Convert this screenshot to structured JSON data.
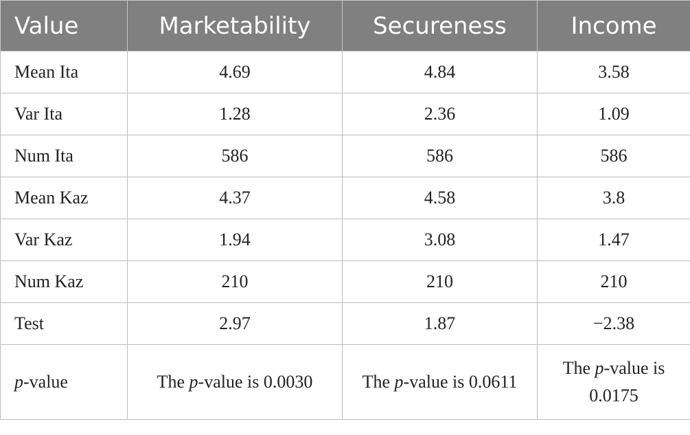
{
  "table": {
    "header": [
      "Value",
      "Marketability",
      "Secureness",
      "Income"
    ],
    "rows": [
      [
        "Mean Ita",
        "4.69",
        "4.84",
        "3.58"
      ],
      [
        "Var Ita",
        "1.28",
        "2.36",
        "1.09"
      ],
      [
        "Num Ita",
        "586",
        "586",
        "586"
      ],
      [
        "Mean Kaz",
        "4.37",
        "4.58",
        "3.8"
      ],
      [
        "Var Kaz",
        "1.94",
        "3.08",
        "1.47"
      ],
      [
        "Num Kaz",
        "210",
        "210",
        "210"
      ],
      [
        "Test",
        "2.97",
        "1.87",
        "−2.38"
      ],
      [
        [
          {
            "italic": "p"
          },
          "-value"
        ],
        [
          "The ",
          {
            "italic": "p"
          },
          "-value is 0.0030"
        ],
        [
          "The ",
          {
            "italic": "p"
          },
          "-value is 0.0611"
        ],
        [
          "The ",
          {
            "italic": "p"
          },
          "-value is 0.0175"
        ]
      ]
    ]
  }
}
